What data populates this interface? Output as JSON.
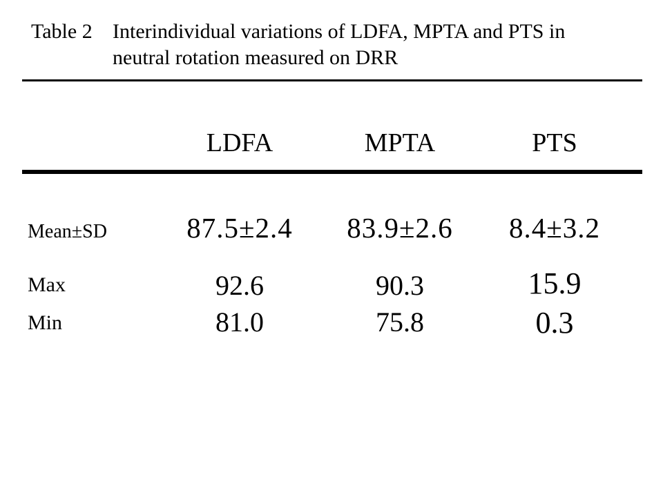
{
  "header": {
    "label": "Table 2",
    "caption": "Interindividual variations of LDFA, MPTA and PTS in neutral rotation measured on DRR",
    "caption_lines": [
      "Interindividual variations of LDFA, MPTA and PTS in",
      "neutral rotation measured on DRR"
    ]
  },
  "table": {
    "columns": [
      "LDFA",
      "MPTA",
      "PTS"
    ],
    "rows": [
      {
        "label": "Mean±SD",
        "values": [
          "87.5±2.4",
          "83.9±2.6",
          "8.4±3.2"
        ]
      },
      {
        "label": "Max",
        "values": [
          "92.6",
          "90.3",
          "15.9"
        ]
      },
      {
        "label": "Min",
        "values": [
          "81.0",
          "75.8",
          "0.3"
        ]
      }
    ]
  },
  "colors": {
    "background": "#ffffff",
    "text": "#000000",
    "rule": "#000000"
  },
  "chart_data": {
    "type": "table",
    "title": "Table 2 Interindividual variations of LDFA, MPTA and PTS in neutral rotation measured on DRR",
    "columns": [
      "",
      "LDFA",
      "MPTA",
      "PTS"
    ],
    "rows": [
      [
        "Mean±SD",
        "87.5±2.4",
        "83.9±2.6",
        "8.4±3.2"
      ],
      [
        "Max",
        "92.6",
        "90.3",
        "15.9"
      ],
      [
        "Min",
        "81.0",
        "75.8",
        "0.3"
      ]
    ]
  }
}
